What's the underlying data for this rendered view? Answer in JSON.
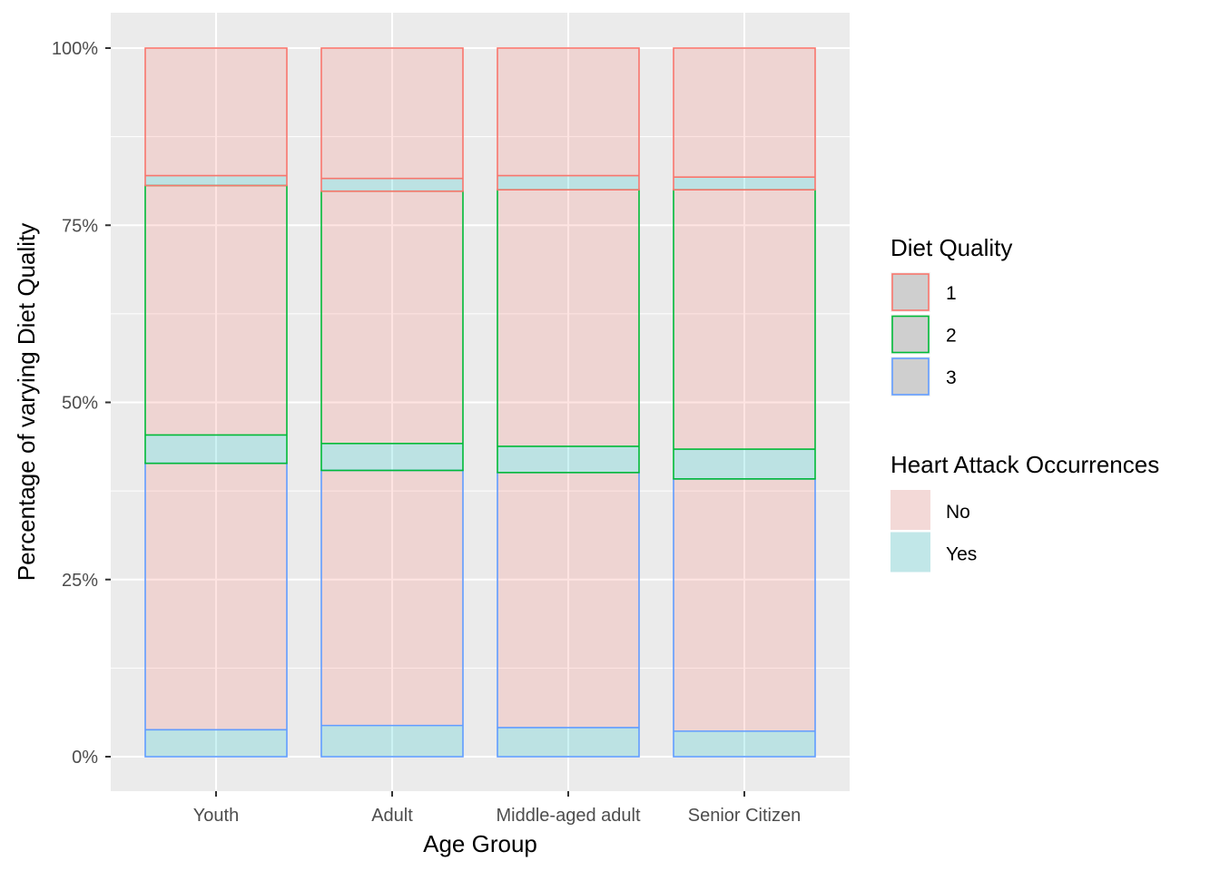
{
  "chart_data": {
    "type": "bar",
    "stacked": true,
    "xlabel": "Age Group",
    "ylabel": "Percentage of varying Diet Quality",
    "categories": [
      "Youth",
      "Adult",
      "Middle-aged adult",
      "Senior Citizen"
    ],
    "y_ticks": [
      "0%",
      "25%",
      "50%",
      "75%",
      "100%"
    ],
    "ylim": [
      0,
      1
    ],
    "grid": true,
    "legend_position": "right",
    "series": [
      {
        "diet_quality": "3",
        "heart_attack": "Yes",
        "values": [
          0.038,
          0.044,
          0.041,
          0.036
        ]
      },
      {
        "diet_quality": "3",
        "heart_attack": "No",
        "values": [
          0.376,
          0.36,
          0.36,
          0.356
        ]
      },
      {
        "diet_quality": "2",
        "heart_attack": "Yes",
        "values": [
          0.04,
          0.038,
          0.037,
          0.042
        ]
      },
      {
        "diet_quality": "2",
        "heart_attack": "No",
        "values": [
          0.352,
          0.356,
          0.362,
          0.366
        ]
      },
      {
        "diet_quality": "1",
        "heart_attack": "Yes",
        "values": [
          0.014,
          0.018,
          0.02,
          0.018
        ]
      },
      {
        "diet_quality": "1",
        "heart_attack": "No",
        "values": [
          0.18,
          0.184,
          0.18,
          0.182
        ]
      }
    ],
    "legends": {
      "diet_quality": {
        "title": "Diet Quality",
        "entries": [
          "1",
          "2",
          "3"
        ],
        "outline_colors": {
          "1": "#F8766D",
          "2": "#00BA38",
          "3": "#619CFF"
        }
      },
      "heart_attack": {
        "title": "Heart Attack Occurrences",
        "entries": [
          "No",
          "Yes"
        ],
        "fill_colors": {
          "No": "#F8766D",
          "Yes": "#00BFC4"
        }
      }
    },
    "fill_alpha": 0.2,
    "panel_color": "#EBEBEB",
    "grid_color": "#FFFFFF"
  }
}
